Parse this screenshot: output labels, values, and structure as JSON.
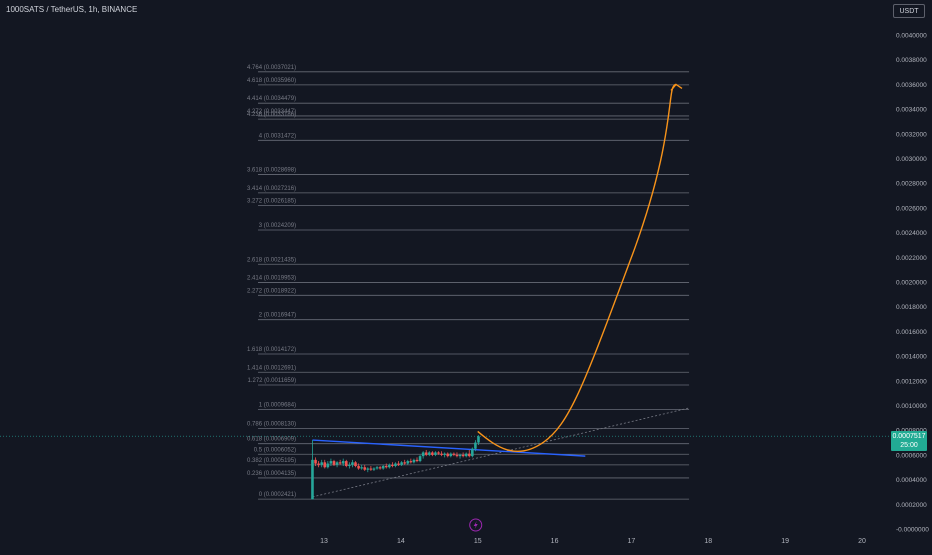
{
  "header": {
    "symbol_title": "1000SATS / TetherUS, 1h, BINANCE",
    "currency_button": "USDT"
  },
  "price_badge": {
    "price": "0.0007517",
    "countdown": "25:00"
  },
  "colors": {
    "background": "#131722",
    "fib_line": "#787b86",
    "up_candle": "#26a69a",
    "down_candle": "#ef5350",
    "trendline": "#2962ff",
    "projection_arrow": "#f7931a",
    "badge": "#22ab94",
    "event_icon": "#9c27b0"
  },
  "icons": {
    "event_marker": "lightning-icon"
  },
  "chart_data": {
    "type": "candlestick",
    "symbol": "1000SATS / TetherUS",
    "timeframe": "1h",
    "exchange": "BINANCE",
    "y_axis": {
      "ylim": [
        -0.0,
        0.004
      ],
      "tick_labels": [
        "0.0040000",
        "0.0038000",
        "0.0036000",
        "0.0034000",
        "0.0032000",
        "0.0030000",
        "0.0028000",
        "0.0026000",
        "0.0024000",
        "0.0022000",
        "0.0020000",
        "0.0018000",
        "0.0016000",
        "0.0014000",
        "0.0012000",
        "0.0010000",
        "0.0008000",
        "0.0006000",
        "0.0004000",
        "0.0002000",
        "-0.0000000"
      ],
      "tick_values": [
        0.004,
        0.0038,
        0.0036,
        0.0034,
        0.0032,
        0.003,
        0.0028,
        0.0026,
        0.0024,
        0.0022,
        0.002,
        0.0018,
        0.0016,
        0.0014,
        0.0012,
        0.001,
        0.0008,
        0.0006,
        0.0004,
        0.0002,
        0.0
      ]
    },
    "x_axis": {
      "range_days": [
        12.6,
        20.0
      ],
      "tick_labels": [
        "13",
        "14",
        "15",
        "16",
        "17",
        "18",
        "19",
        "20"
      ],
      "tick_values": [
        13,
        14,
        15,
        16,
        17,
        18,
        19,
        20
      ]
    },
    "current_price": 0.0007517,
    "fib_levels": [
      {
        "label": "4.764 (0.0037021)",
        "value": 0.0037021
      },
      {
        "label": "4.618 (0.0035960)",
        "value": 0.003596
      },
      {
        "label": "4.414 (0.0034479)",
        "value": 0.0034479
      },
      {
        "label": "4.272 (0.0033447)",
        "value": 0.0033447
      },
      {
        "label": "4.236 (0.0033186)",
        "value": 0.0033186
      },
      {
        "label": "4 (0.0031472)",
        "value": 0.0031472
      },
      {
        "label": "3.618 (0.0028698)",
        "value": 0.0028698
      },
      {
        "label": "3.414 (0.0027216)",
        "value": 0.0027216
      },
      {
        "label": "3.272 (0.0026185)",
        "value": 0.0026185
      },
      {
        "label": "3 (0.0024209)",
        "value": 0.0024209
      },
      {
        "label": "2.618 (0.0021435)",
        "value": 0.0021435
      },
      {
        "label": "2.414 (0.0019953)",
        "value": 0.0019953
      },
      {
        "label": "2.272 (0.0018922)",
        "value": 0.0018922
      },
      {
        "label": "2 (0.0016947)",
        "value": 0.0016947
      },
      {
        "label": "1.618 (0.0014172)",
        "value": 0.0014172
      },
      {
        "label": "1.414 (0.0012691)",
        "value": 0.0012691
      },
      {
        "label": "1.272 (0.0011659)",
        "value": 0.0011659
      },
      {
        "label": "1 (0.0009684)",
        "value": 0.0009684
      },
      {
        "label": "0.786 (0.0008130)",
        "value": 0.000813
      },
      {
        "label": "0.618 (0.0006909)",
        "value": 0.0006909
      },
      {
        "label": "0.5 (0.0006052)",
        "value": 0.0006052
      },
      {
        "label": "0.382 (0.0005195)",
        "value": 0.0005195
      },
      {
        "label": "0.236 (0.0004135)",
        "value": 0.0004135
      },
      {
        "label": "0 (0.0002421)",
        "value": 0.0002421
      }
    ],
    "fib_x_range_days": [
      12.65,
      17.75
    ],
    "candles": [
      {
        "t": 12.85,
        "o": 0.00024,
        "h": 0.00072,
        "l": 0.00024,
        "c": 0.00056
      },
      {
        "t": 12.89,
        "o": 0.00056,
        "h": 0.00058,
        "l": 0.00051,
        "c": 0.00053
      },
      {
        "t": 12.93,
        "o": 0.00053,
        "h": 0.00055,
        "l": 0.0005,
        "c": 0.00052
      },
      {
        "t": 12.97,
        "o": 0.00052,
        "h": 0.00056,
        "l": 0.0005,
        "c": 0.00054
      },
      {
        "t": 13.01,
        "o": 0.00054,
        "h": 0.00056,
        "l": 0.00049,
        "c": 0.0005
      },
      {
        "t": 13.05,
        "o": 0.0005,
        "h": 0.00055,
        "l": 0.00049,
        "c": 0.00053
      },
      {
        "t": 13.09,
        "o": 0.00053,
        "h": 0.00057,
        "l": 0.00051,
        "c": 0.00055
      },
      {
        "t": 13.13,
        "o": 0.00055,
        "h": 0.00056,
        "l": 0.00051,
        "c": 0.00052
      },
      {
        "t": 13.17,
        "o": 0.00052,
        "h": 0.00055,
        "l": 0.0005,
        "c": 0.00054
      },
      {
        "t": 13.21,
        "o": 0.00054,
        "h": 0.00056,
        "l": 0.00052,
        "c": 0.00053
      },
      {
        "t": 13.25,
        "o": 0.00053,
        "h": 0.00057,
        "l": 0.00051,
        "c": 0.00055
      },
      {
        "t": 13.29,
        "o": 0.00055,
        "h": 0.00056,
        "l": 0.0005,
        "c": 0.00051
      },
      {
        "t": 13.33,
        "o": 0.00051,
        "h": 0.00054,
        "l": 0.00049,
        "c": 0.00052
      },
      {
        "t": 13.37,
        "o": 0.00052,
        "h": 0.00056,
        "l": 0.0005,
        "c": 0.00054
      },
      {
        "t": 13.41,
        "o": 0.00054,
        "h": 0.00055,
        "l": 0.0005,
        "c": 0.00051
      },
      {
        "t": 13.45,
        "o": 0.00051,
        "h": 0.00053,
        "l": 0.00048,
        "c": 0.00049
      },
      {
        "t": 13.49,
        "o": 0.00049,
        "h": 0.00052,
        "l": 0.00048,
        "c": 0.0005
      },
      {
        "t": 13.53,
        "o": 0.0005,
        "h": 0.00052,
        "l": 0.00047,
        "c": 0.00048
      },
      {
        "t": 13.57,
        "o": 0.00048,
        "h": 0.0005,
        "l": 0.00046,
        "c": 0.00049
      },
      {
        "t": 13.61,
        "o": 0.00049,
        "h": 0.00051,
        "l": 0.00047,
        "c": 0.00048
      },
      {
        "t": 13.65,
        "o": 0.00048,
        "h": 0.0005,
        "l": 0.00047,
        "c": 0.00049
      },
      {
        "t": 13.69,
        "o": 0.00049,
        "h": 0.00051,
        "l": 0.00048,
        "c": 0.0005
      },
      {
        "t": 13.73,
        "o": 0.0005,
        "h": 0.00051,
        "l": 0.00048,
        "c": 0.00049
      },
      {
        "t": 13.77,
        "o": 0.00049,
        "h": 0.00052,
        "l": 0.00048,
        "c": 0.00051
      },
      {
        "t": 13.81,
        "o": 0.00051,
        "h": 0.00053,
        "l": 0.00049,
        "c": 0.0005
      },
      {
        "t": 13.85,
        "o": 0.0005,
        "h": 0.00053,
        "l": 0.00049,
        "c": 0.00052
      },
      {
        "t": 13.89,
        "o": 0.00052,
        "h": 0.00054,
        "l": 0.0005,
        "c": 0.00051
      },
      {
        "t": 13.93,
        "o": 0.00051,
        "h": 0.00054,
        "l": 0.0005,
        "c": 0.00053
      },
      {
        "t": 13.97,
        "o": 0.00053,
        "h": 0.00055,
        "l": 0.00051,
        "c": 0.00052
      },
      {
        "t": 14.01,
        "o": 0.00052,
        "h": 0.00055,
        "l": 0.00051,
        "c": 0.00054
      },
      {
        "t": 14.05,
        "o": 0.00054,
        "h": 0.00056,
        "l": 0.00052,
        "c": 0.00053
      },
      {
        "t": 14.09,
        "o": 0.00053,
        "h": 0.00056,
        "l": 0.00052,
        "c": 0.00055
      },
      {
        "t": 14.13,
        "o": 0.00055,
        "h": 0.00057,
        "l": 0.00053,
        "c": 0.00054
      },
      {
        "t": 14.17,
        "o": 0.00054,
        "h": 0.00057,
        "l": 0.00053,
        "c": 0.00056
      },
      {
        "t": 14.21,
        "o": 0.00056,
        "h": 0.00058,
        "l": 0.00054,
        "c": 0.00055
      },
      {
        "t": 14.25,
        "o": 0.00055,
        "h": 0.0006,
        "l": 0.00054,
        "c": 0.00059
      },
      {
        "t": 14.29,
        "o": 0.00059,
        "h": 0.00063,
        "l": 0.00057,
        "c": 0.00062
      },
      {
        "t": 14.33,
        "o": 0.00062,
        "h": 0.00064,
        "l": 0.00059,
        "c": 0.0006
      },
      {
        "t": 14.37,
        "o": 0.0006,
        "h": 0.00063,
        "l": 0.00059,
        "c": 0.00062
      },
      {
        "t": 14.41,
        "o": 0.00062,
        "h": 0.00063,
        "l": 0.00059,
        "c": 0.0006
      },
      {
        "t": 14.45,
        "o": 0.0006,
        "h": 0.00063,
        "l": 0.00059,
        "c": 0.00062
      },
      {
        "t": 14.49,
        "o": 0.00062,
        "h": 0.00063,
        "l": 0.0006,
        "c": 0.00061
      },
      {
        "t": 14.53,
        "o": 0.00061,
        "h": 0.00063,
        "l": 0.00059,
        "c": 0.0006
      },
      {
        "t": 14.57,
        "o": 0.0006,
        "h": 0.00062,
        "l": 0.00058,
        "c": 0.00061
      },
      {
        "t": 14.61,
        "o": 0.00061,
        "h": 0.00062,
        "l": 0.00058,
        "c": 0.00059
      },
      {
        "t": 14.65,
        "o": 0.00059,
        "h": 0.00062,
        "l": 0.00058,
        "c": 0.00061
      },
      {
        "t": 14.69,
        "o": 0.00061,
        "h": 0.00062,
        "l": 0.00059,
        "c": 0.0006
      },
      {
        "t": 14.73,
        "o": 0.0006,
        "h": 0.00062,
        "l": 0.00058,
        "c": 0.00059
      },
      {
        "t": 14.77,
        "o": 0.00059,
        "h": 0.00061,
        "l": 0.00057,
        "c": 0.0006
      },
      {
        "t": 14.81,
        "o": 0.0006,
        "h": 0.00062,
        "l": 0.00058,
        "c": 0.00059
      },
      {
        "t": 14.85,
        "o": 0.00059,
        "h": 0.00062,
        "l": 0.00058,
        "c": 0.00061
      },
      {
        "t": 14.89,
        "o": 0.00061,
        "h": 0.00064,
        "l": 0.00058,
        "c": 0.00059
      },
      {
        "t": 14.93,
        "o": 0.00059,
        "h": 0.00066,
        "l": 0.00058,
        "c": 0.00065
      },
      {
        "t": 14.97,
        "o": 0.00065,
        "h": 0.00072,
        "l": 0.00063,
        "c": 0.0007
      },
      {
        "t": 15.01,
        "o": 0.0007,
        "h": 0.00076,
        "l": 0.00068,
        "c": 0.00075
      }
    ],
    "drawings": {
      "channel_top_line": {
        "start": [
          12.85,
          0.00072
        ],
        "end": [
          16.4,
          0.00059
        ]
      },
      "rising_dotted_line": {
        "start": [
          12.85,
          0.00026
        ],
        "end": [
          17.75,
          0.00098
        ]
      },
      "projection_curve": [
        [
          15.0,
          0.00079
        ],
        [
          15.25,
          0.00066
        ],
        [
          15.5,
          0.0006
        ],
        [
          15.85,
          0.0007
        ],
        [
          16.4,
          0.0012
        ],
        [
          17.0,
          0.0022
        ],
        [
          17.45,
          0.0036
        ],
        [
          17.58,
          0.0036
        ]
      ]
    }
  }
}
